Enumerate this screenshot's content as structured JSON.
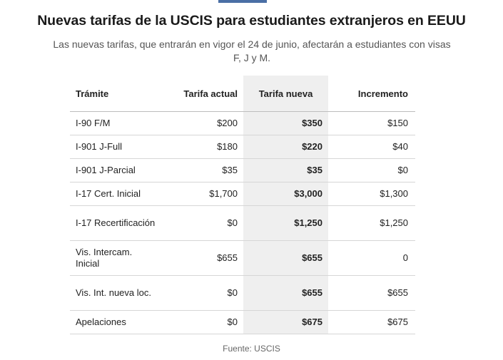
{
  "title": "Nuevas tarifas de la USCIS para estudiantes extranjeros en EEUU",
  "subtitle": "Las nuevas tarifas, que entrarán en vigor el 24 de junio, afectarán a estudiantes con visas F, J y M.",
  "source": "Fuente: USCIS",
  "colors": {
    "accent": "#4a6fa5",
    "highlight_column": "#efefef"
  },
  "chart_data": {
    "type": "table",
    "columns": [
      "Trámite",
      "Tarifa actual",
      "Tarifa nueva",
      "Incremento"
    ],
    "rows": [
      {
        "tramite": "I-90 F/M",
        "actual": "$200",
        "nueva": "$350",
        "incremento": "$150"
      },
      {
        "tramite": "I-901 J-Full",
        "actual": "$180",
        "nueva": "$220",
        "incremento": "$40"
      },
      {
        "tramite": "I-901 J-Parcial",
        "actual": "$35",
        "nueva": "$35",
        "incremento": "$0"
      },
      {
        "tramite": "I-17 Cert. Inicial",
        "actual": "$1,700",
        "nueva": "$3,000",
        "incremento": "$1,300"
      },
      {
        "tramite": "I-17 Recertificación",
        "actual": "$0",
        "nueva": "$1,250",
        "incremento": "$1,250"
      },
      {
        "tramite": "Vis. Intercam. Inicial",
        "actual": "$655",
        "nueva": "$655",
        "incremento": "0"
      },
      {
        "tramite": "Vis. Int. nueva loc.",
        "actual": "$0",
        "nueva": "$655",
        "incremento": "$655"
      },
      {
        "tramite": "Apelaciones",
        "actual": "$0",
        "nueva": "$675",
        "incremento": "$675"
      }
    ]
  }
}
